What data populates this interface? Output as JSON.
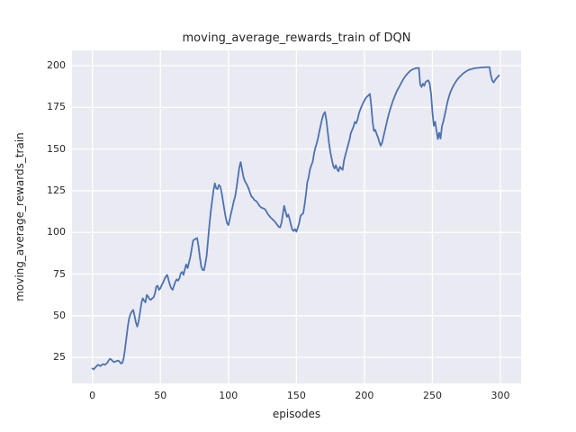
{
  "figure": {
    "background": "#ffffff"
  },
  "chart_data": {
    "type": "line",
    "title": "moving_average_rewards_train of DQN",
    "xlabel": "episodes",
    "ylabel": "moving_average_rewards_train",
    "x_ticks": [
      0,
      50,
      100,
      150,
      200,
      250,
      300
    ],
    "y_ticks": [
      25,
      50,
      75,
      100,
      125,
      150,
      175,
      200
    ],
    "xlim": [
      -15,
      315.2
    ],
    "ylim": [
      9.4,
      209.2
    ],
    "grid": true,
    "legend": "none",
    "style": {
      "axes_background": "#eaeaf2",
      "grid_color": "#ffffff",
      "line_color": "#4c72b0",
      "text_color": "#262626",
      "line_width": 1.8,
      "grid_width": 1.3
    },
    "series": [
      {
        "name": "moving_average_rewards_train",
        "points": [
          [
            0,
            18.3
          ],
          [
            1,
            17.8
          ],
          [
            2,
            18.9
          ],
          [
            3,
            19.6
          ],
          [
            4,
            20.6
          ],
          [
            5,
            20.2
          ],
          [
            6,
            19.8
          ],
          [
            7,
            20.6
          ],
          [
            8,
            21.0
          ],
          [
            9,
            20.5
          ],
          [
            10,
            21.0
          ],
          [
            11,
            21.8
          ],
          [
            12,
            23.3
          ],
          [
            13,
            24.2
          ],
          [
            14,
            23.6
          ],
          [
            15,
            22.7
          ],
          [
            16,
            22.2
          ],
          [
            17,
            22.5
          ],
          [
            18,
            22.9
          ],
          [
            19,
            23.1
          ],
          [
            20,
            22.4
          ],
          [
            21,
            21.4
          ],
          [
            22,
            21.6
          ],
          [
            23,
            24.5
          ],
          [
            24,
            30.0
          ],
          [
            25,
            36.5
          ],
          [
            26,
            43.5
          ],
          [
            27,
            48.5
          ],
          [
            28,
            51.0
          ],
          [
            29,
            52.5
          ],
          [
            30,
            53.5
          ],
          [
            31,
            50.0
          ],
          [
            32,
            46.0
          ],
          [
            33,
            43.5
          ],
          [
            34,
            46.5
          ],
          [
            35,
            52.0
          ],
          [
            36,
            57.5
          ],
          [
            37,
            60.5
          ],
          [
            38,
            59.0
          ],
          [
            39,
            58.0
          ],
          [
            40,
            62.5
          ],
          [
            41,
            61.5
          ],
          [
            42,
            60.0
          ],
          [
            43,
            59.5
          ],
          [
            44,
            60.5
          ],
          [
            45,
            61.0
          ],
          [
            46,
            63.5
          ],
          [
            47,
            67.5
          ],
          [
            48,
            68.0
          ],
          [
            49,
            65.5
          ],
          [
            50,
            66.5
          ],
          [
            51,
            68.5
          ],
          [
            52,
            70.0
          ],
          [
            53,
            72.0
          ],
          [
            54,
            73.5
          ],
          [
            55,
            74.5
          ],
          [
            56,
            71.5
          ],
          [
            57,
            68.5
          ],
          [
            58,
            66.5
          ],
          [
            59,
            65.5
          ],
          [
            60,
            68.0
          ],
          [
            61,
            70.5
          ],
          [
            62,
            71.8
          ],
          [
            63,
            71.0
          ],
          [
            64,
            72.5
          ],
          [
            65,
            75.5
          ],
          [
            66,
            76.3
          ],
          [
            67,
            74.5
          ],
          [
            68,
            78.0
          ],
          [
            69,
            80.8
          ],
          [
            70,
            78.6
          ],
          [
            71,
            82.0
          ],
          [
            72,
            85.3
          ],
          [
            73,
            90.0
          ],
          [
            74,
            95.0
          ],
          [
            75,
            95.8
          ],
          [
            76,
            96.1
          ],
          [
            77,
            96.6
          ],
          [
            78,
            92.0
          ],
          [
            79,
            85.0
          ],
          [
            80,
            79.5
          ],
          [
            81,
            77.5
          ],
          [
            82,
            77.3
          ],
          [
            83,
            81.0
          ],
          [
            84,
            86.0
          ],
          [
            85,
            95.0
          ],
          [
            86,
            104.0
          ],
          [
            87,
            112.0
          ],
          [
            88,
            119.0
          ],
          [
            89,
            125.0
          ],
          [
            90,
            129.5
          ],
          [
            91,
            126.5
          ],
          [
            92,
            126.0
          ],
          [
            93,
            128.5
          ],
          [
            94,
            127.5
          ],
          [
            95,
            124.0
          ],
          [
            96,
            119.0
          ],
          [
            97,
            113.5
          ],
          [
            98,
            109.0
          ],
          [
            99,
            105.5
          ],
          [
            100,
            104.4
          ],
          [
            101,
            108.0
          ],
          [
            102,
            111.6
          ],
          [
            103,
            115.0
          ],
          [
            104,
            118.8
          ],
          [
            105,
            121.5
          ],
          [
            106,
            127.0
          ],
          [
            107,
            133.0
          ],
          [
            108,
            139.0
          ],
          [
            109,
            142.2
          ],
          [
            110,
            138.0
          ],
          [
            111,
            133.5
          ],
          [
            112,
            131.0
          ],
          [
            113,
            129.5
          ],
          [
            114,
            128.0
          ],
          [
            115,
            126.0
          ],
          [
            116,
            123.5
          ],
          [
            117,
            121.5
          ],
          [
            118,
            120.8
          ],
          [
            119,
            119.5
          ],
          [
            120,
            119.0
          ],
          [
            121,
            118.3
          ],
          [
            122,
            117.0
          ],
          [
            123,
            115.8
          ],
          [
            124,
            115.0
          ],
          [
            125,
            114.6
          ],
          [
            126,
            114.4
          ],
          [
            127,
            113.8
          ],
          [
            128,
            112.5
          ],
          [
            129,
            111.0
          ],
          [
            130,
            110.0
          ],
          [
            131,
            109.0
          ],
          [
            132,
            108.2
          ],
          [
            133,
            107.4
          ],
          [
            134,
            106.6
          ],
          [
            135,
            105.5
          ],
          [
            136,
            104.4
          ],
          [
            137,
            103.4
          ],
          [
            138,
            103.0
          ],
          [
            139,
            105.5
          ],
          [
            140,
            110.5
          ],
          [
            141,
            116.0
          ],
          [
            142,
            112.5
          ],
          [
            143,
            109.3
          ],
          [
            144,
            110.7
          ],
          [
            145,
            108.0
          ],
          [
            146,
            104.5
          ],
          [
            147,
            101.7
          ],
          [
            148,
            100.8
          ],
          [
            149,
            102.0
          ],
          [
            150,
            100.4
          ],
          [
            151,
            102.8
          ],
          [
            152,
            105.5
          ],
          [
            153,
            109.8
          ],
          [
            154,
            110.8
          ],
          [
            155,
            111.4
          ],
          [
            156,
            116.5
          ],
          [
            157,
            122.5
          ],
          [
            158,
            130.0
          ],
          [
            159,
            133.0
          ],
          [
            160,
            138.0
          ],
          [
            161,
            140.3
          ],
          [
            162,
            142.5
          ],
          [
            163,
            147.5
          ],
          [
            164,
            151.0
          ],
          [
            165,
            153.5
          ],
          [
            166,
            157.0
          ],
          [
            167,
            161.0
          ],
          [
            168,
            165.0
          ],
          [
            169,
            168.5
          ],
          [
            170,
            171.0
          ],
          [
            171,
            172.2
          ],
          [
            172,
            167.5
          ],
          [
            173,
            160.5
          ],
          [
            174,
            153.5
          ],
          [
            175,
            148.0
          ],
          [
            176,
            144.0
          ],
          [
            177,
            140.0
          ],
          [
            178,
            138.3
          ],
          [
            179,
            140.3
          ],
          [
            180,
            137.8
          ],
          [
            181,
            136.7
          ],
          [
            182,
            139.4
          ],
          [
            183,
            138.3
          ],
          [
            184,
            137.5
          ],
          [
            185,
            143.0
          ],
          [
            186,
            146.5
          ],
          [
            187,
            149.5
          ],
          [
            188,
            152.5
          ],
          [
            189,
            155.5
          ],
          [
            190,
            159.5
          ],
          [
            191,
            161.5
          ],
          [
            192,
            163.5
          ],
          [
            193,
            166.2
          ],
          [
            194,
            165.5
          ],
          [
            195,
            168.0
          ],
          [
            196,
            171.5
          ],
          [
            197,
            173.8
          ],
          [
            198,
            175.8
          ],
          [
            199,
            177.5
          ],
          [
            200,
            179.2
          ],
          [
            201,
            180.5
          ],
          [
            202,
            181.5
          ],
          [
            203,
            182.2
          ],
          [
            204,
            183.1
          ],
          [
            205,
            176.0
          ],
          [
            206,
            166.5
          ],
          [
            207,
            160.8
          ],
          [
            208,
            161.5
          ],
          [
            209,
            159.0
          ],
          [
            210,
            157.0
          ],
          [
            211,
            154.3
          ],
          [
            212,
            152.0
          ],
          [
            213,
            153.8
          ],
          [
            214,
            157.5
          ],
          [
            215,
            161.0
          ],
          [
            216,
            164.5
          ],
          [
            217,
            168.0
          ],
          [
            218,
            171.2
          ],
          [
            219,
            174.0
          ],
          [
            220,
            176.5
          ],
          [
            221,
            179.0
          ],
          [
            222,
            181.2
          ],
          [
            223,
            183.2
          ],
          [
            224,
            185.0
          ],
          [
            225,
            186.6
          ],
          [
            226,
            188.0
          ],
          [
            227,
            189.5
          ],
          [
            228,
            191.0
          ],
          [
            229,
            192.4
          ],
          [
            230,
            193.6
          ],
          [
            231,
            194.7
          ],
          [
            232,
            195.6
          ],
          [
            233,
            196.4
          ],
          [
            234,
            197.1
          ],
          [
            235,
            197.6
          ],
          [
            236,
            198.0
          ],
          [
            237,
            198.3
          ],
          [
            238,
            198.5
          ],
          [
            239,
            198.6
          ],
          [
            240,
            198.7
          ],
          [
            241,
            188.8
          ],
          [
            242,
            187.2
          ],
          [
            243,
            189.3
          ],
          [
            244,
            188.0
          ],
          [
            245,
            190.3
          ],
          [
            246,
            190.8
          ],
          [
            247,
            191.2
          ],
          [
            248,
            189.3
          ],
          [
            249,
            183.0
          ],
          [
            250,
            172.0
          ],
          [
            251,
            164.0
          ],
          [
            252,
            166.3
          ],
          [
            253,
            161.0
          ],
          [
            254,
            156.0
          ],
          [
            255,
            159.8
          ],
          [
            256,
            156.3
          ],
          [
            257,
            163.5
          ],
          [
            258,
            166.5
          ],
          [
            259,
            170.2
          ],
          [
            260,
            174.0
          ],
          [
            261,
            178.0
          ],
          [
            262,
            181.0
          ],
          [
            263,
            183.6
          ],
          [
            264,
            185.6
          ],
          [
            265,
            187.3
          ],
          [
            266,
            188.8
          ],
          [
            267,
            190.2
          ],
          [
            268,
            191.4
          ],
          [
            269,
            192.4
          ],
          [
            270,
            193.3
          ],
          [
            271,
            194.1
          ],
          [
            272,
            194.9
          ],
          [
            273,
            195.6
          ],
          [
            274,
            196.2
          ],
          [
            275,
            196.7
          ],
          [
            276,
            197.2
          ],
          [
            277,
            197.6
          ],
          [
            278,
            197.9
          ],
          [
            279,
            198.1
          ],
          [
            280,
            198.3
          ],
          [
            281,
            198.5
          ],
          [
            282,
            198.6
          ],
          [
            283,
            198.7
          ],
          [
            284,
            198.8
          ],
          [
            285,
            198.9
          ],
          [
            286,
            199.0
          ],
          [
            287,
            199.0
          ],
          [
            288,
            199.1
          ],
          [
            289,
            199.1
          ],
          [
            290,
            199.1
          ],
          [
            291,
            199.2
          ],
          [
            292,
            199.2
          ],
          [
            293,
            194.0
          ],
          [
            294,
            191.0
          ],
          [
            295,
            189.9
          ],
          [
            296,
            191.3
          ],
          [
            297,
            192.4
          ],
          [
            298,
            193.3
          ],
          [
            299,
            194.2
          ]
        ]
      }
    ]
  }
}
